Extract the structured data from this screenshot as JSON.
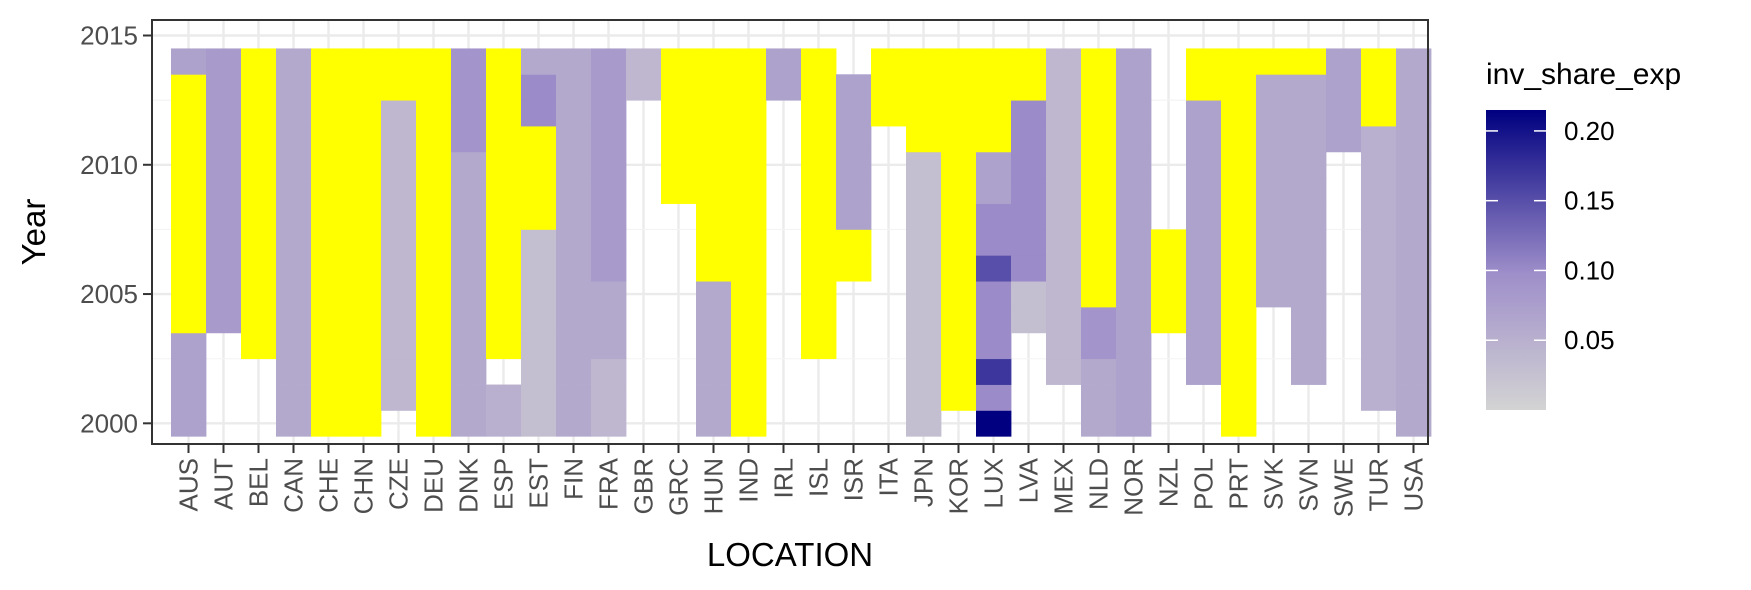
{
  "chart_data": {
    "type": "heatmap",
    "xlabel": "LOCATION",
    "ylabel": "Year",
    "x_categories": [
      "AUS",
      "AUT",
      "BEL",
      "CAN",
      "CHE",
      "CHN",
      "CZE",
      "DEU",
      "DNK",
      "ESP",
      "EST",
      "FIN",
      "FRA",
      "GBR",
      "GRC",
      "HUN",
      "IND",
      "IRL",
      "ISL",
      "ISR",
      "ITA",
      "JPN",
      "KOR",
      "LUX",
      "LVA",
      "MEX",
      "NLD",
      "NOR",
      "NZL",
      "POL",
      "PRT",
      "SVK",
      "SVN",
      "SWE",
      "TUR",
      "USA"
    ],
    "y_ticks": [
      2000,
      2005,
      2010,
      2015
    ],
    "y_range": [
      1999.2,
      2015.6
    ],
    "color_scale": {
      "title": "inv_share_exp",
      "low": 0.0,
      "high": 0.215,
      "low_color": "#d3d3d3",
      "mid_color": "#9f8fca",
      "high_color": "#000080",
      "breaks": [
        0.05,
        0.1,
        0.15,
        0.2
      ],
      "break_labels": [
        "0.05",
        "0.10",
        "0.15",
        "0.20"
      ],
      "highlight_color": "#ffff00"
    },
    "grid": true,
    "legend_position": "right",
    "columns": {
      "AUS": {
        "segments": [
          [
            2000,
            2003,
            0.07
          ],
          [
            2004,
            2013,
            "hl"
          ],
          [
            2014,
            2014,
            0.07
          ]
        ]
      },
      "AUT": {
        "segments": [
          [
            2004,
            2014,
            0.08
          ]
        ]
      },
      "BEL": {
        "segments": [
          [
            2003,
            2014,
            "hl"
          ]
        ]
      },
      "CAN": {
        "segments": [
          [
            2000,
            2014,
            0.06
          ]
        ]
      },
      "CHE": {
        "segments": [
          [
            2000,
            2014,
            "hl"
          ]
        ]
      },
      "CHN": {
        "segments": [
          [
            2000,
            2014,
            "hl"
          ]
        ]
      },
      "CZE": {
        "segments": [
          [
            2001,
            2012,
            0.04
          ],
          [
            2013,
            2014,
            "hl"
          ]
        ]
      },
      "DEU": {
        "segments": [
          [
            2000,
            2014,
            "hl"
          ]
        ]
      },
      "DNK": {
        "segments": [
          [
            2000,
            2010,
            0.06
          ],
          [
            2011,
            2014,
            0.09
          ]
        ]
      },
      "ESP": {
        "segments": [
          [
            2000,
            2001,
            0.05
          ],
          [
            2003,
            2014,
            "hl"
          ]
        ]
      },
      "EST": {
        "segments": [
          [
            2000,
            2007,
            0.03
          ],
          [
            2008,
            2011,
            "hl"
          ],
          [
            2012,
            2013,
            0.1
          ],
          [
            2014,
            2014,
            0.06
          ]
        ]
      },
      "FIN": {
        "segments": [
          [
            2000,
            2014,
            0.06
          ]
        ]
      },
      "FRA": {
        "segments": [
          [
            2000,
            2002,
            0.04
          ],
          [
            2003,
            2005,
            0.06
          ],
          [
            2006,
            2014,
            0.08
          ]
        ]
      },
      "GBR": {
        "segments": [
          [
            2013,
            2014,
            0.04
          ]
        ]
      },
      "GRC": {
        "segments": [
          [
            2009,
            2014,
            "hl"
          ]
        ]
      },
      "HUN": {
        "segments": [
          [
            2000,
            2005,
            0.06
          ],
          [
            2006,
            2014,
            "hl"
          ]
        ]
      },
      "IND": {
        "segments": [
          [
            2000,
            2014,
            "hl"
          ]
        ]
      },
      "IRL": {
        "segments": [
          [
            2013,
            2014,
            0.07
          ]
        ]
      },
      "ISL": {
        "segments": [
          [
            2003,
            2014,
            "hl"
          ]
        ]
      },
      "ISR": {
        "segments": [
          [
            2006,
            2007,
            "hl"
          ],
          [
            2008,
            2013,
            0.07
          ]
        ]
      },
      "ITA": {
        "segments": [
          [
            2012,
            2014,
            "hl"
          ]
        ]
      },
      "JPN": {
        "segments": [
          [
            2000,
            2010,
            0.03
          ],
          [
            2011,
            2014,
            "hl"
          ]
        ]
      },
      "KOR": {
        "segments": [
          [
            2001,
            2014,
            "hl"
          ]
        ]
      },
      "LUX": {
        "segments": [
          [
            2000,
            2000,
            0.215
          ],
          [
            2001,
            2001,
            0.1
          ],
          [
            2002,
            2002,
            0.17
          ],
          [
            2003,
            2005,
            0.1
          ],
          [
            2006,
            2006,
            0.15
          ],
          [
            2007,
            2008,
            0.1
          ],
          [
            2009,
            2010,
            0.07
          ],
          [
            2011,
            2014,
            "hl"
          ]
        ]
      },
      "LVA": {
        "segments": [
          [
            2004,
            2005,
            0.03
          ],
          [
            2006,
            2012,
            0.1
          ],
          [
            2013,
            2014,
            "hl"
          ]
        ]
      },
      "MEX": {
        "segments": [
          [
            2002,
            2014,
            0.04
          ]
        ]
      },
      "NLD": {
        "segments": [
          [
            2000,
            2002,
            0.06
          ],
          [
            2003,
            2004,
            0.09
          ],
          [
            2005,
            2014,
            "hl"
          ]
        ]
      },
      "NOR": {
        "segments": [
          [
            2000,
            2014,
            0.07
          ]
        ]
      },
      "NZL": {
        "segments": [
          [
            2004,
            2007,
            "hl"
          ]
        ]
      },
      "POL": {
        "segments": [
          [
            2002,
            2012,
            0.07
          ],
          [
            2013,
            2014,
            "hl"
          ]
        ]
      },
      "PRT": {
        "segments": [
          [
            2000,
            2014,
            "hl"
          ]
        ]
      },
      "SVK": {
        "segments": [
          [
            2005,
            2013,
            0.06
          ],
          [
            2014,
            2014,
            "hl"
          ]
        ]
      },
      "SVN": {
        "segments": [
          [
            2002,
            2013,
            0.06
          ],
          [
            2014,
            2014,
            "hl"
          ]
        ]
      },
      "SWE": {
        "segments": [
          [
            2011,
            2014,
            0.07
          ]
        ]
      },
      "TUR": {
        "segments": [
          [
            2001,
            2011,
            0.05
          ],
          [
            2012,
            2014,
            "hl"
          ]
        ]
      },
      "USA": {
        "segments": [
          [
            2000,
            2014,
            0.06
          ]
        ]
      }
    }
  }
}
